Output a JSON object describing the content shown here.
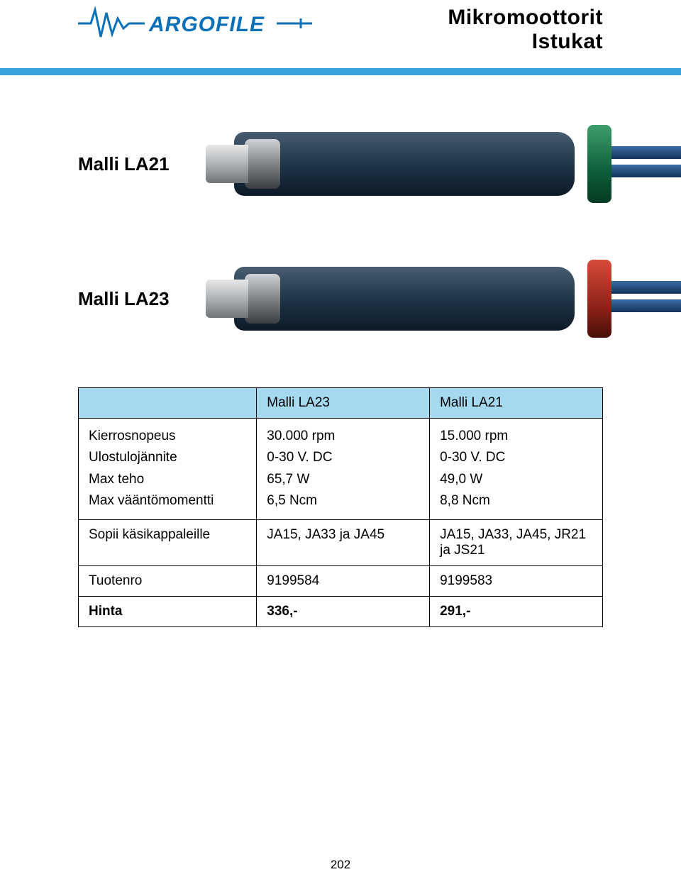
{
  "header": {
    "brand": "ARGOFILE",
    "title_line1": "Mikromoottorit",
    "title_line2": "Istukat"
  },
  "models": {
    "la21_label": "Malli LA21",
    "la23_label": "Malli LA23"
  },
  "table": {
    "head_blank": "",
    "head_col1": "Malli LA23",
    "head_col2": "Malli LA21",
    "rows": [
      {
        "label": "Kierrosnopeus\nUlostulojännite\nMax teho\nMax vääntömomentti",
        "c1": "30.000 rpm\n0-30 V. DC\n65,7 W\n6,5  Ncm",
        "c2": "15.000 rpm\n0-30 V. DC\n49,0 W\n8,8  Ncm"
      },
      {
        "label": "Sopii käsikappaleille",
        "c1": "JA15, JA33 ja JA45",
        "c2": "JA15, JA33, JA45, JR21 ja JS21"
      },
      {
        "label": "Tuotenro",
        "c1": "9199584",
        "c2": "9199583"
      },
      {
        "label": "Hinta",
        "c1": "336,-",
        "c2": "291,-",
        "bold": true
      }
    ]
  },
  "page_number": "202",
  "colors": {
    "rule": "#37a3dc",
    "table_head_bg": "#a4d9ef",
    "ring_green": "#0d5d3a",
    "ring_red": "#8e2318"
  }
}
